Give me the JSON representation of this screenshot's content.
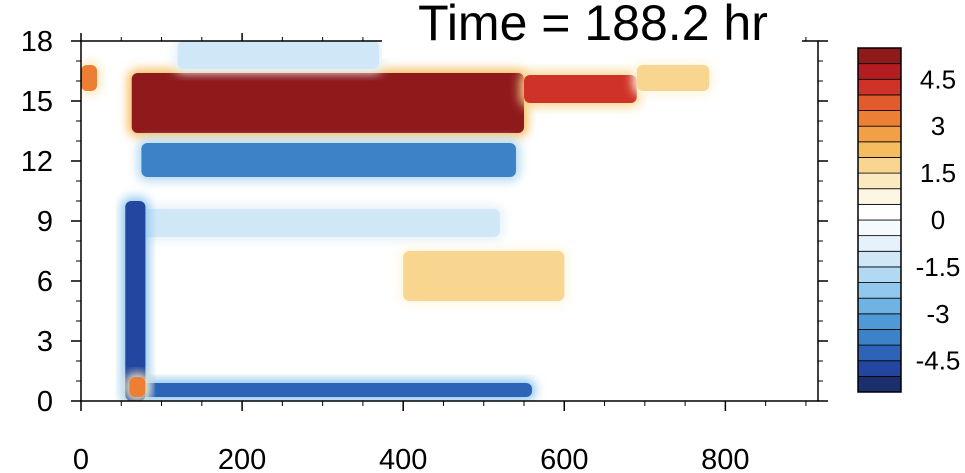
{
  "chart_data": {
    "type": "heatmap",
    "title": "Time = 188.2 hr",
    "xlabel": "",
    "ylabel": "",
    "xlim": [
      0,
      915
    ],
    "ylim": [
      0,
      18
    ],
    "x_ticks": [
      "0",
      "200",
      "400",
      "600",
      "800"
    ],
    "y_ticks": [
      "0",
      "3",
      "6",
      "9",
      "12",
      "15",
      "18"
    ],
    "colorbar": {
      "levels": [
        -5.5,
        -5,
        -4.5,
        -4,
        -3.5,
        -3,
        -2.5,
        -2,
        -1.5,
        -1,
        -0.5,
        0,
        0.5,
        1,
        1.5,
        2,
        2.5,
        3,
        3.5,
        4,
        4.5,
        5,
        5.5
      ],
      "colors": [
        "#1a2f6b",
        "#2346a0",
        "#2e64b8",
        "#3b82c6",
        "#4f9ad4",
        "#6fb3e2",
        "#91c8ee",
        "#b2d9f3",
        "#cfe7f7",
        "#e5f2fb",
        "#f5fafd",
        "#ffffff",
        "#fdf6e3",
        "#fbe9bf",
        "#f9d68f",
        "#f6bd60",
        "#f2a045",
        "#ec7f34",
        "#e15b2c",
        "#cf3226",
        "#b31d22",
        "#8f1a1c"
      ],
      "tick_labels": [
        "4.5",
        "3",
        "1.5",
        "0",
        "-1.5",
        "-3",
        "-4.5"
      ],
      "tick_values": [
        4.5,
        3,
        1.5,
        0,
        -1.5,
        -3,
        -4.5
      ]
    },
    "features": [
      {
        "x0": 63,
        "x1": 550,
        "y0": 13.4,
        "y1": 16.4,
        "value": 5.5
      },
      {
        "x0": 550,
        "x1": 690,
        "y0": 14.9,
        "y1": 16.3,
        "value": 4.0
      },
      {
        "x0": 690,
        "x1": 780,
        "y0": 15.5,
        "y1": 16.8,
        "value": 1.5
      },
      {
        "x0": 75,
        "x1": 540,
        "y0": 11.2,
        "y1": 12.9,
        "value": -4.0
      },
      {
        "x0": 75,
        "x1": 520,
        "y0": 8.2,
        "y1": 9.6,
        "value": -1.5
      },
      {
        "x0": 75,
        "x1": 560,
        "y0": 0.2,
        "y1": 0.9,
        "value": -4.5
      },
      {
        "x0": 55,
        "x1": 80,
        "y0": 0,
        "y1": 10,
        "value": -5.0
      },
      {
        "x0": 60,
        "x1": 80,
        "y0": 0.2,
        "y1": 1.2,
        "value": 3.0
      },
      {
        "x0": 400,
        "x1": 600,
        "y0": 5.0,
        "y1": 7.5,
        "value": 1.5
      },
      {
        "x0": 120,
        "x1": 370,
        "y0": 16.6,
        "y1": 18.0,
        "value": -1.5
      },
      {
        "x0": 0,
        "x1": 20,
        "y0": 15.5,
        "y1": 16.8,
        "value": 3.0
      }
    ]
  }
}
